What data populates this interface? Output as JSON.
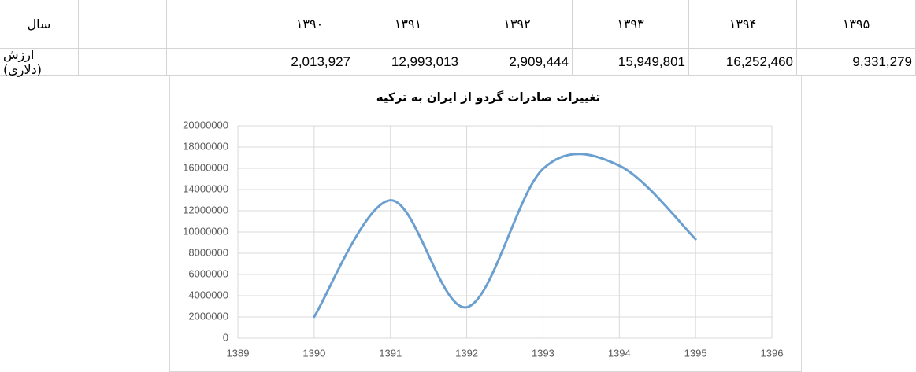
{
  "table": {
    "header": {
      "label": "سال",
      "years": [
        "۱۳۹۰",
        "۱۳۹۱",
        "۱۳۹۲",
        "۱۳۹۳",
        "۱۳۹۴",
        "۱۳۹۵"
      ]
    },
    "row": {
      "label": "ارزش (دلاری)",
      "cells": [
        "2,013,927",
        "12,993,013",
        "2,909,444",
        "15,949,801",
        "16,252,460",
        "9,331,279"
      ]
    }
  },
  "chart_data": {
    "type": "line",
    "title": "تغییرات صادرات گردو از ایران به ترکیه",
    "x": [
      1390,
      1391,
      1392,
      1393,
      1394,
      1395
    ],
    "series": [
      {
        "name": "ارزش (دلاری)",
        "color": "#6a9fcf",
        "values": [
          2013927,
          12993013,
          2909444,
          15949801,
          16252460,
          9331279
        ]
      }
    ],
    "smooth": true,
    "xlim": [
      1389,
      1396
    ],
    "xticks": [
      1389,
      1390,
      1391,
      1392,
      1393,
      1394,
      1395,
      1396
    ],
    "ylim": [
      0,
      20000000
    ],
    "yticks": [
      0,
      2000000,
      4000000,
      6000000,
      8000000,
      10000000,
      12000000,
      14000000,
      16000000,
      18000000,
      20000000
    ],
    "grid": true
  }
}
